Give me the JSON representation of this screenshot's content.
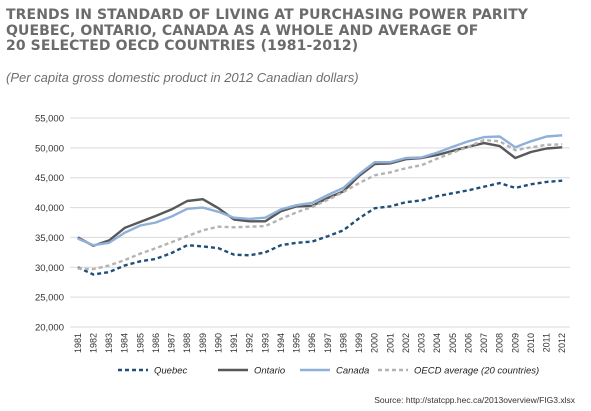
{
  "title_lines": [
    "TRENDS IN STANDARD OF LIVING AT PURCHASING POWER PARITY",
    "QUEBEC, ONTARIO, CANADA AS A WHOLE AND AVERAGE OF",
    "20 SELECTED OECD COUNTRIES (1981-2012)"
  ],
  "subtitle": "(Per capita gross domestic product in 2012 Canadian dollars)",
  "source": "Source: http://statcpp.hec.ca/2013overview/FIG3.xlsx",
  "chart_data": {
    "type": "line",
    "title": "TRENDS IN STANDARD OF LIVING AT PURCHASING POWER PARITY QUEBEC, ONTARIO, CANADA AS A WHOLE AND AVERAGE OF 20 SELECTED OECD COUNTRIES (1981-2012)",
    "subtitle": "(Per capita gross domestic product in 2012 Canadian dollars)",
    "xlabel": "",
    "ylabel": "",
    "ylim": [
      20000,
      55000
    ],
    "yticks": [
      20000,
      25000,
      30000,
      35000,
      40000,
      45000,
      50000,
      55000
    ],
    "ytick_labels": [
      "20,000",
      "25,000",
      "30,000",
      "35,000",
      "40,000",
      "45,000",
      "50,000",
      "55,000"
    ],
    "grid": "horizontal",
    "legend_position": "bottom",
    "categories": [
      "1981",
      "1982",
      "1983",
      "1984",
      "1985",
      "1986",
      "1987",
      "1988",
      "1989",
      "1990",
      "1991",
      "1992",
      "1993",
      "1994",
      "1995",
      "1996",
      "1997",
      "1998",
      "1999",
      "2000",
      "2001",
      "2002",
      "2003",
      "2004",
      "2005",
      "2006",
      "2007",
      "2008",
      "2009",
      "2010",
      "2011",
      "2012"
    ],
    "series": [
      {
        "name": "Quebec",
        "color": "#1f4e79",
        "style": "dashed",
        "values": [
          30000,
          28800,
          29200,
          30300,
          31000,
          31400,
          32400,
          33700,
          33500,
          33200,
          32100,
          32000,
          32500,
          33700,
          34100,
          34300,
          35200,
          36200,
          38200,
          39900,
          40200,
          40900,
          41200,
          41900,
          42400,
          42900,
          43500,
          44100,
          43300,
          43900,
          44300,
          44500
        ]
      },
      {
        "name": "Ontario",
        "color": "#58585a",
        "style": "solid",
        "values": [
          35000,
          33600,
          34500,
          36600,
          37600,
          38600,
          39700,
          41100,
          41400,
          39900,
          38000,
          37700,
          37700,
          39400,
          40200,
          40300,
          41600,
          42700,
          45300,
          47300,
          47400,
          48100,
          48300,
          48800,
          49500,
          50200,
          50800,
          50300,
          48300,
          49300,
          49900,
          50100
        ]
      },
      {
        "name": "Canada",
        "color": "#8fb0d8",
        "style": "solid",
        "values": [
          34800,
          33700,
          34100,
          35800,
          37000,
          37500,
          38500,
          39800,
          40000,
          39300,
          38300,
          38100,
          38300,
          39700,
          40400,
          40800,
          42100,
          43300,
          45600,
          47600,
          47600,
          48300,
          48400,
          49200,
          50200,
          51100,
          51800,
          51900,
          50100,
          51100,
          51900,
          52100
        ]
      },
      {
        "name": "OECD average (20 countries)",
        "color": "#b3b3b3",
        "style": "dashed",
        "values": [
          29800,
          29700,
          30300,
          31200,
          32300,
          33200,
          34200,
          35200,
          36200,
          36800,
          36700,
          36800,
          36900,
          38100,
          39200,
          40100,
          41300,
          42600,
          44100,
          45400,
          45900,
          46600,
          47100,
          48200,
          49200,
          50200,
          51300,
          51100,
          49600,
          50100,
          50500,
          50600
        ]
      }
    ]
  }
}
